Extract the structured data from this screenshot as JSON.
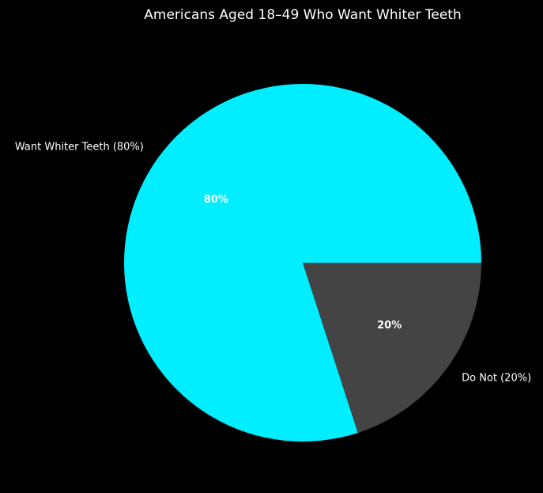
{
  "chart_data": {
    "type": "pie",
    "title": "Americans Aged 18–49 Who Want Whiter Teeth",
    "categories": [
      "Want Whiter Teeth (80%)",
      "Do Not (20%)"
    ],
    "values": [
      80,
      20
    ],
    "value_labels": [
      "80%",
      "20%"
    ],
    "colors": [
      "#00eeff",
      "#444444"
    ]
  }
}
